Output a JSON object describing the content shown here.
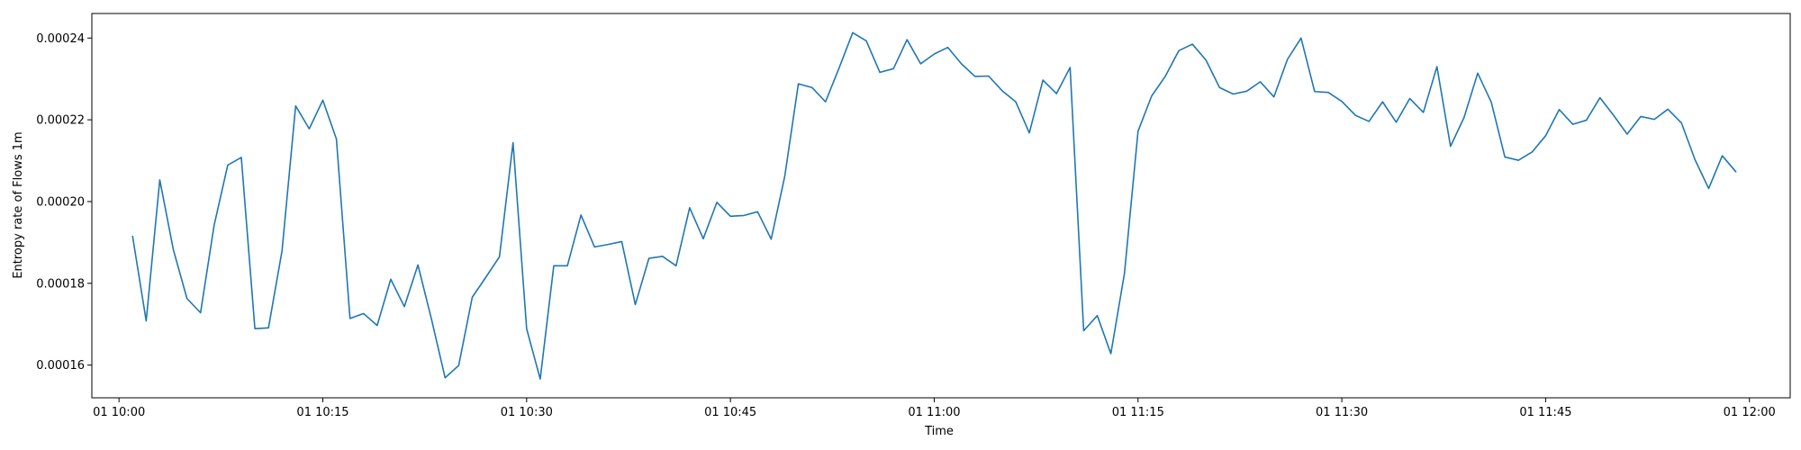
{
  "chart_data": {
    "type": "line",
    "title": "",
    "xlabel": "Time",
    "ylabel": "Entropy rate of Flows 1m",
    "x_start": "10:01",
    "x_step_minutes": 1,
    "xlim": [
      "09:58",
      "12:03"
    ],
    "ylim": [
      0.000152,
      0.000246
    ],
    "x_ticks": [
      {
        "t": "10:00",
        "label": "01 10:00"
      },
      {
        "t": "10:15",
        "label": "01 10:15"
      },
      {
        "t": "10:30",
        "label": "01 10:30"
      },
      {
        "t": "10:45",
        "label": "01 10:45"
      },
      {
        "t": "11:00",
        "label": "01 11:00"
      },
      {
        "t": "11:15",
        "label": "01 11:15"
      },
      {
        "t": "11:30",
        "label": "01 11:30"
      },
      {
        "t": "11:45",
        "label": "01 11:45"
      },
      {
        "t": "12:00",
        "label": "01 12:00"
      }
    ],
    "y_ticks": [
      {
        "value": 0.00016,
        "label": "0.00016"
      },
      {
        "value": 0.00018,
        "label": "0.00018"
      },
      {
        "value": 0.0002,
        "label": "0.00020"
      },
      {
        "value": 0.00022,
        "label": "0.00022"
      },
      {
        "value": 0.00024,
        "label": "0.00024"
      }
    ],
    "grid": false,
    "series": [
      {
        "color": "#1f77b4",
        "values": [
          0.0001915,
          0.0001708,
          0.0002053,
          0.0001882,
          0.0001763,
          0.0001728,
          0.0001942,
          0.0002089,
          0.0002108,
          0.0001689,
          0.0001691,
          0.000188,
          0.0002234,
          0.0002178,
          0.0002248,
          0.0002153,
          0.0001714,
          0.0001726,
          0.0001697,
          0.000181,
          0.0001743,
          0.0001845,
          0.0001712,
          0.0001569,
          0.0001599,
          0.0001766,
          0.0001815,
          0.0001865,
          0.0002144,
          0.0001689,
          0.0001566,
          0.0001843,
          0.0001843,
          0.0001967,
          0.0001889,
          0.0001895,
          0.0001902,
          0.0001748,
          0.0001861,
          0.0001866,
          0.0001843,
          0.0001985,
          0.0001909,
          0.0001998,
          0.0001964,
          0.0001966,
          0.0001975,
          0.0001908,
          0.0002062,
          0.0002288,
          0.0002279,
          0.0002244,
          0.0002327,
          0.0002413,
          0.0002393,
          0.0002316,
          0.0002325,
          0.0002396,
          0.0002337,
          0.0002361,
          0.0002377,
          0.0002337,
          0.0002306,
          0.0002307,
          0.0002271,
          0.0002244,
          0.0002168,
          0.0002297,
          0.0002264,
          0.0002328,
          0.0001684,
          0.0001721,
          0.0001628,
          0.0001824,
          0.0002172,
          0.0002258,
          0.0002306,
          0.0002369,
          0.0002385,
          0.0002346,
          0.0002279,
          0.0002263,
          0.000227,
          0.0002293,
          0.0002256,
          0.0002348,
          0.00024,
          0.0002269,
          0.0002267,
          0.0002245,
          0.0002211,
          0.0002196,
          0.0002244,
          0.0002194,
          0.0002252,
          0.0002218,
          0.000233,
          0.0002135,
          0.0002206,
          0.0002314,
          0.0002243,
          0.0002109,
          0.0002101,
          0.0002121,
          0.0002161,
          0.0002225,
          0.0002189,
          0.0002199,
          0.0002254,
          0.0002211,
          0.0002165,
          0.0002208,
          0.0002201,
          0.0002226,
          0.0002192,
          0.0002102,
          0.0002032,
          0.0002112,
          0.0002073
        ]
      }
    ]
  }
}
